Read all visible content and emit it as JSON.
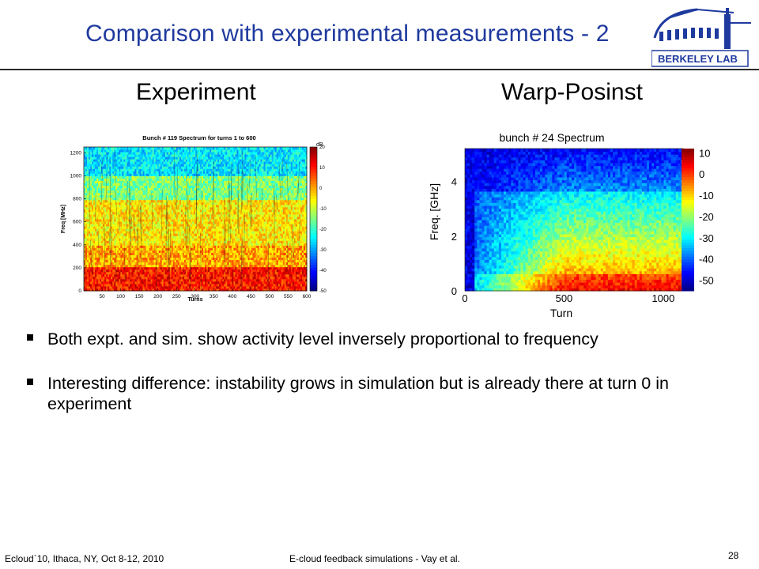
{
  "slide": {
    "title": "Comparison with experimental measurements - 2",
    "logo": {
      "icon": "berkeley-lab-logo",
      "text": "BERKELEY LAB",
      "color": "#1f3a9e"
    },
    "headings": {
      "left": "Experiment",
      "right": "Warp-Posinst"
    },
    "bullets": [
      "Both expt. and sim. show activity level inversely proportional to frequency",
      "Interesting difference: instability grows in simulation but is already there at turn 0 in experiment"
    ],
    "footer": {
      "left": "Ecloud`10, Ithaca, NY, Oct 8-12, 2010",
      "center": "E-cloud feedback simulations - Vay et al.",
      "page": "28"
    }
  },
  "chart_data": [
    {
      "type": "heatmap",
      "title": "Bunch # 119 Spectrum for turns 1 to 600",
      "xlabel": "Turns",
      "ylabel": "Freq [MHz]",
      "x_ticks": [
        50,
        100,
        150,
        200,
        250,
        300,
        350,
        400,
        450,
        500,
        550,
        600
      ],
      "y_ticks": [
        0,
        200,
        400,
        600,
        800,
        1000,
        1200
      ],
      "xlim": [
        1,
        600
      ],
      "ylim": [
        0,
        1250
      ],
      "colorbar": {
        "unit": "dB",
        "ticks": [
          20,
          10,
          0,
          -10,
          -20,
          -30,
          -40,
          -50
        ],
        "range": [
          -50,
          20
        ]
      },
      "bands": [
        {
          "y": [
            0,
            200
          ],
          "level_db": 10
        },
        {
          "y": [
            200,
            400
          ],
          "level_db": 0
        },
        {
          "y": [
            400,
            800
          ],
          "level_db": -5
        },
        {
          "y": [
            800,
            1000
          ],
          "level_db": -15
        },
        {
          "y": [
            1000,
            1250
          ],
          "level_db": -25
        }
      ]
    },
    {
      "type": "heatmap",
      "title": "bunch # 24 Spectrum",
      "xlabel": "Turn",
      "ylabel": "Freq. [GHz]",
      "x_ticks": [
        0,
        500,
        1000
      ],
      "y_ticks": [
        0,
        2,
        4
      ],
      "xlim": [
        0,
        1100
      ],
      "ylim": [
        0,
        5.2
      ],
      "colorbar": {
        "ticks": [
          10,
          0,
          -10,
          -20,
          -30,
          -40,
          -50
        ],
        "range": [
          -55,
          12
        ]
      }
    }
  ]
}
